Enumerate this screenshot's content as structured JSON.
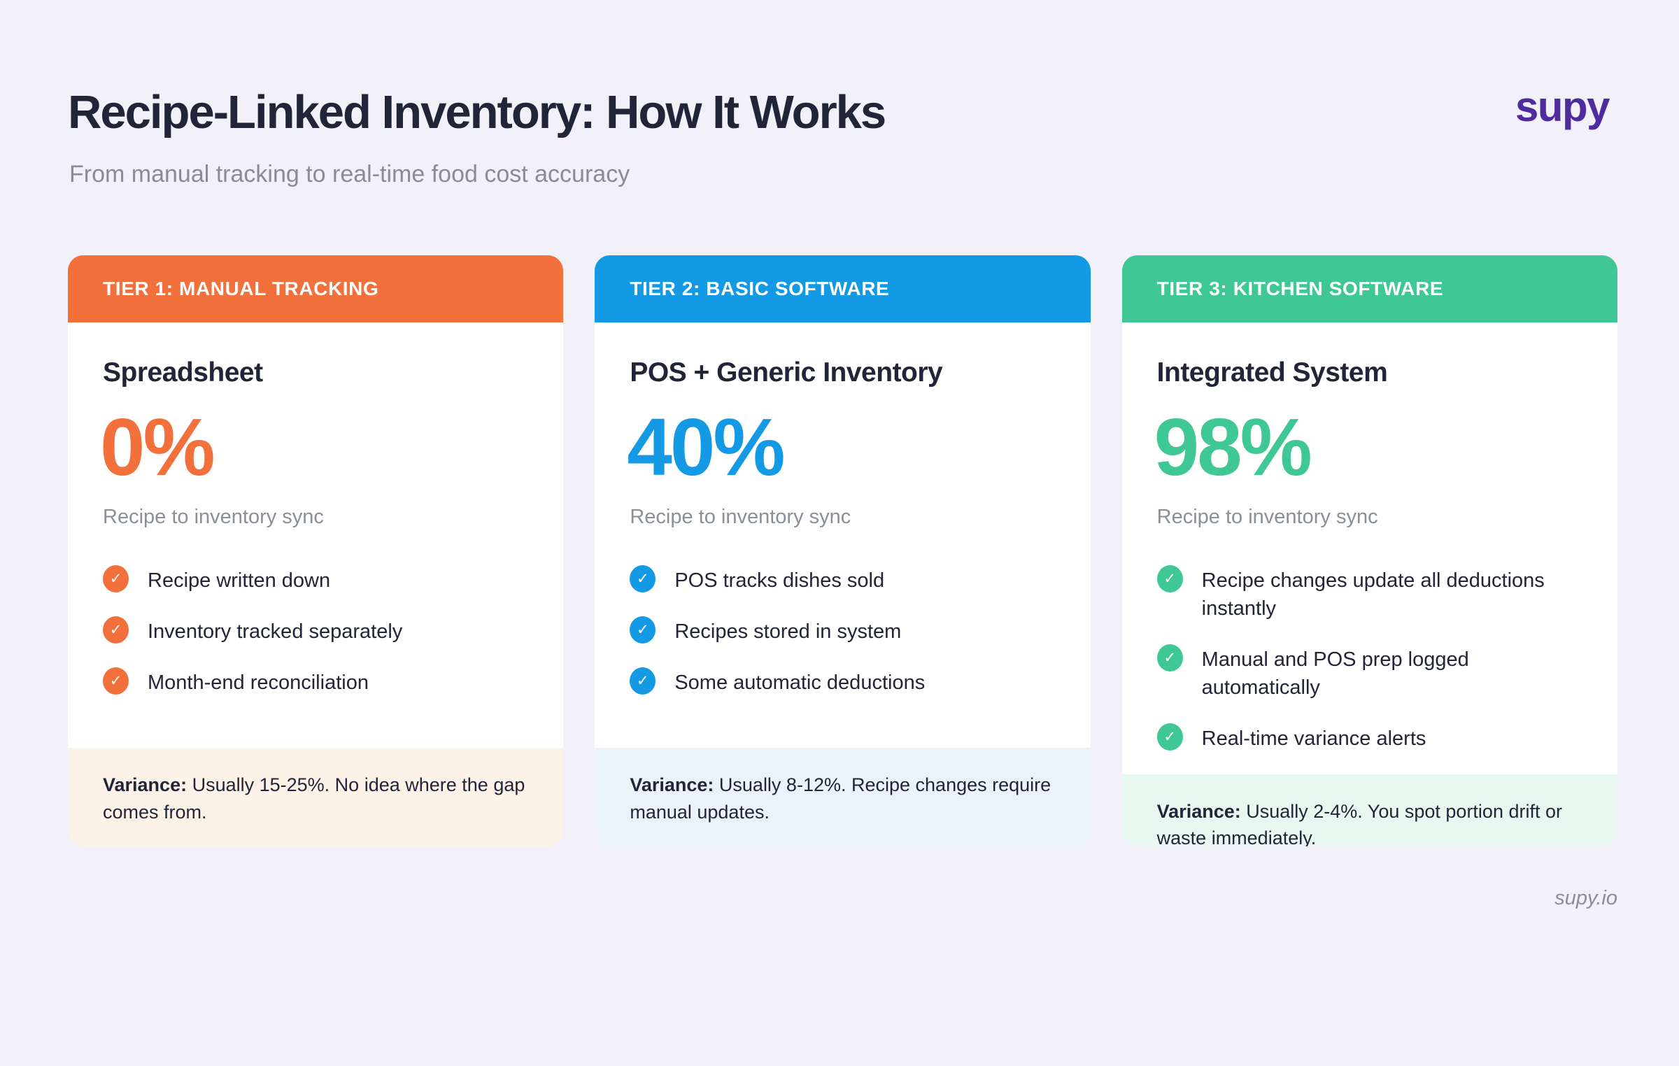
{
  "header": {
    "title": "Recipe-Linked Inventory: How It Works",
    "subtitle": "From manual tracking to real-time food cost accuracy",
    "logo_text": "supy"
  },
  "icons": {
    "check": "✓"
  },
  "colors": {
    "background": "#F2F0F9",
    "heading_text": "#222438",
    "muted_text": "#8B8B97",
    "logo_purple": "#4E2C9E",
    "tier1_accent": "#F2703C",
    "tier2_accent": "#1499E5",
    "tier3_accent": "#3FC795",
    "tier1_footer_bg": "#FDF2E8",
    "tier2_footer_bg": "#EBF3FA",
    "tier3_footer_bg": "#E8F8F0"
  },
  "cards": [
    {
      "tier_label": "TIER 1: MANUAL TRACKING",
      "system_name": "Spreadsheet",
      "sync_percent": "0%",
      "sync_caption": "Recipe to inventory sync",
      "features": [
        "Recipe written down",
        "Inventory tracked separately",
        "Month-end reconciliation"
      ],
      "variance_label": "Variance:",
      "variance_text": " Usually 15-25%. No idea where the gap comes from."
    },
    {
      "tier_label": "TIER 2: BASIC SOFTWARE",
      "system_name": "POS + Generic Inventory",
      "sync_percent": "40%",
      "sync_caption": "Recipe to inventory sync",
      "features": [
        "POS tracks dishes sold",
        "Recipes stored in system",
        "Some automatic deductions"
      ],
      "variance_label": "Variance:",
      "variance_text": " Usually 8-12%. Recipe changes require manual updates."
    },
    {
      "tier_label": "TIER 3: KITCHEN SOFTWARE",
      "system_name": "Integrated System",
      "sync_percent": "98%",
      "sync_caption": "Recipe to inventory sync",
      "features": [
        "Recipe changes update all deductions instantly",
        "Manual and POS prep logged automatically",
        "Real-time variance alerts"
      ],
      "variance_label": "Variance:",
      "variance_text": " Usually 2-4%. You spot portion drift or waste immediately."
    }
  ],
  "footer": {
    "site": "supy.io"
  }
}
